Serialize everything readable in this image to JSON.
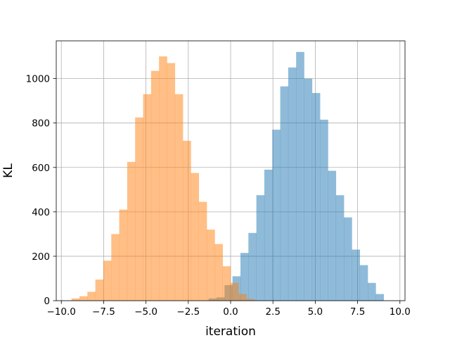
{
  "chart_data": {
    "type": "bar",
    "subtype": "overlaid-histogram",
    "title": "",
    "xlabel": "iteration",
    "ylabel": "KL",
    "xlim": [
      -10.3,
      10.3
    ],
    "ylim": [
      0,
      1170
    ],
    "grid": true,
    "xticks": [
      -10.0,
      -7.5,
      -5.0,
      -2.5,
      0.0,
      2.5,
      5.0,
      7.5,
      10.0
    ],
    "xtick_labels": [
      "−10.0",
      "−7.5",
      "−5.0",
      "−2.5",
      "0.0",
      "2.5",
      "5.0",
      "7.5",
      "10.0"
    ],
    "yticks": [
      0,
      200,
      400,
      600,
      800,
      1000
    ],
    "ytick_labels": [
      "0",
      "200",
      "400",
      "600",
      "800",
      "1000"
    ],
    "series": [
      {
        "color": "#1f77b4",
        "alpha": 0.5,
        "bin_edges": [
          -1.3,
          -0.83,
          -0.36,
          0.11,
          0.58,
          1.05,
          1.52,
          1.99,
          2.46,
          2.93,
          3.4,
          3.87,
          4.34,
          4.81,
          5.28,
          5.75,
          6.22,
          6.69,
          7.16,
          7.63,
          8.1,
          8.57,
          9.04
        ],
        "counts": [
          10,
          15,
          70,
          110,
          215,
          305,
          475,
          590,
          770,
          965,
          1050,
          1120,
          1000,
          935,
          815,
          585,
          475,
          375,
          230,
          160,
          80,
          30
        ]
      },
      {
        "color": "#ff7f0e",
        "alpha": 0.5,
        "bin_edges": [
          -9.4,
          -8.93,
          -8.46,
          -7.99,
          -7.52,
          -7.05,
          -6.58,
          -6.11,
          -5.64,
          -5.17,
          -4.7,
          -4.23,
          -3.76,
          -3.29,
          -2.82,
          -2.35,
          -1.88,
          -1.41,
          -0.94,
          -0.47,
          0.0,
          0.47,
          0.94,
          1.41
        ],
        "counts": [
          10,
          20,
          40,
          95,
          180,
          300,
          410,
          625,
          825,
          930,
          1035,
          1100,
          1070,
          930,
          720,
          575,
          445,
          320,
          255,
          155,
          80,
          30,
          8
        ]
      }
    ]
  }
}
